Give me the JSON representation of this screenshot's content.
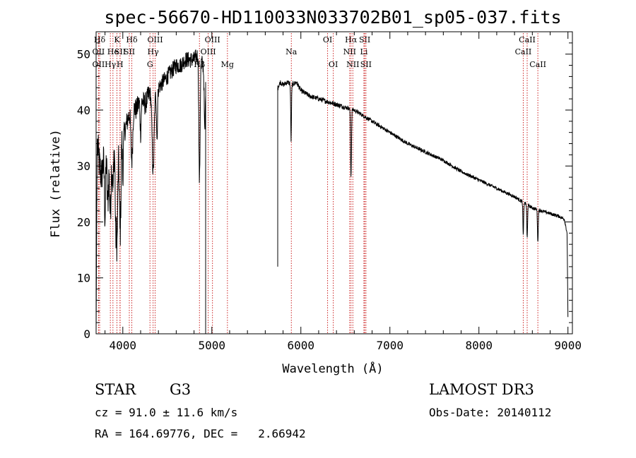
{
  "chart_data": {
    "type": "line",
    "title": "spec-56670-HD110033N033702B01_sp05-037.fits",
    "xlabel": "Wavelength (Å)",
    "ylabel": "Flux (relative)",
    "xlim": [
      3700,
      9050
    ],
    "ylim": [
      0,
      54
    ],
    "xticks": [
      4000,
      5000,
      6000,
      7000,
      8000,
      9000
    ],
    "yticks": [
      0,
      10,
      20,
      30,
      40,
      50
    ],
    "gap": [
      4930,
      5740
    ],
    "spectrum_anchors": [
      [
        3700,
        0
      ],
      [
        3712,
        35
      ],
      [
        3730,
        31
      ],
      [
        3760,
        28
      ],
      [
        3800,
        33
      ],
      [
        3850,
        30
      ],
      [
        3900,
        34
      ],
      [
        3940,
        31
      ],
      [
        3970,
        36
      ],
      [
        4000,
        35
      ],
      [
        4050,
        38
      ],
      [
        4100,
        41
      ],
      [
        4150,
        40
      ],
      [
        4200,
        42
      ],
      [
        4250,
        41
      ],
      [
        4300,
        43
      ],
      [
        4350,
        43
      ],
      [
        4400,
        44
      ],
      [
        4450,
        45
      ],
      [
        4500,
        46
      ],
      [
        4550,
        47
      ],
      [
        4600,
        48
      ],
      [
        4650,
        48
      ],
      [
        4700,
        49
      ],
      [
        4750,
        49
      ],
      [
        4800,
        49
      ],
      [
        4850,
        50
      ],
      [
        4900,
        48
      ],
      [
        4930,
        45
      ],
      [
        5740,
        44
      ],
      [
        5770,
        45
      ],
      [
        5800,
        44.5
      ],
      [
        5850,
        45
      ],
      [
        5900,
        44.5
      ],
      [
        5950,
        45
      ],
      [
        6000,
        43.5
      ],
      [
        6100,
        42.5
      ],
      [
        6200,
        42
      ],
      [
        6300,
        41.5
      ],
      [
        6400,
        41
      ],
      [
        6500,
        40.5
      ],
      [
        6600,
        40
      ],
      [
        6700,
        39
      ],
      [
        6800,
        38
      ],
      [
        6900,
        37
      ],
      [
        7000,
        36
      ],
      [
        7200,
        34
      ],
      [
        7400,
        32.5
      ],
      [
        7600,
        31
      ],
      [
        7800,
        29
      ],
      [
        8000,
        27.5
      ],
      [
        8200,
        26
      ],
      [
        8400,
        24.5
      ],
      [
        8500,
        23.5
      ],
      [
        8600,
        22.5
      ],
      [
        8700,
        22
      ],
      [
        8800,
        21.5
      ],
      [
        8900,
        21
      ],
      [
        8960,
        20.5
      ],
      [
        8990,
        18
      ],
      [
        9000,
        3
      ]
    ],
    "absorption_dips": [
      [
        3800,
        12,
        9
      ],
      [
        3830,
        8,
        10
      ],
      [
        3860,
        9,
        11
      ],
      [
        3890,
        7,
        10
      ],
      [
        3920,
        13,
        8
      ],
      [
        3935,
        15,
        10
      ],
      [
        3970,
        18,
        12
      ],
      [
        4000,
        8,
        6
      ],
      [
        4101,
        10,
        14
      ],
      [
        4200,
        6,
        8
      ],
      [
        4340,
        14,
        16
      ],
      [
        4384,
        9,
        8
      ],
      [
        4861,
        22,
        10
      ],
      [
        4920,
        10,
        8
      ],
      [
        5890,
        10,
        6
      ],
      [
        6563,
        12,
        7
      ],
      [
        8498,
        6,
        6
      ],
      [
        8542,
        6,
        6
      ],
      [
        8662,
        6,
        6
      ]
    ],
    "noise": [
      [
        3700,
        4000,
        7
      ],
      [
        4000,
        4300,
        4
      ],
      [
        4300,
        4900,
        3
      ],
      [
        4900,
        4930,
        3
      ],
      [
        5740,
        6500,
        0.9
      ],
      [
        6500,
        7500,
        0.7
      ],
      [
        7500,
        9000,
        0.6
      ]
    ],
    "spectral_lines": [
      {
        "label": "Hδ",
        "x": 3740,
        "row": 0
      },
      {
        "label": "OII",
        "x": 3727,
        "row": 1
      },
      {
        "label": "OII",
        "x": 3727,
        "row": 2
      },
      {
        "label": "He",
        "x": 3889,
        "row": 1
      },
      {
        "label": "Hγ",
        "x": 3860,
        "row": 2
      },
      {
        "label": "K",
        "x": 3934,
        "row": 0
      },
      {
        "label": "SII",
        "x": 3970,
        "row": 1
      },
      {
        "label": "H",
        "x": 3968,
        "row": 2
      },
      {
        "label": "Hδ",
        "x": 4101,
        "row": 0
      },
      {
        "label": "SII",
        "x": 4073,
        "row": 1
      },
      {
        "label": "OIII",
        "x": 4363,
        "row": 0
      },
      {
        "label": "Hγ",
        "x": 4340,
        "row": 1
      },
      {
        "label": "G",
        "x": 4305,
        "row": 2
      },
      {
        "label": "OIII",
        "x": 5007,
        "row": 0
      },
      {
        "label": "OIII",
        "x": 4959,
        "row": 1
      },
      {
        "label": "Hβ",
        "x": 4861,
        "row": 2
      },
      {
        "label": "Mg",
        "x": 5175,
        "row": 2
      },
      {
        "label": "Na",
        "x": 5893,
        "row": 1
      },
      {
        "label": "OI",
        "x": 6300,
        "row": 0
      },
      {
        "label": "OI",
        "x": 6364,
        "row": 2
      },
      {
        "label": "Hα",
        "x": 6563,
        "row": 0
      },
      {
        "label": "NII",
        "x": 6548,
        "row": 1
      },
      {
        "label": "NII",
        "x": 6584,
        "row": 2
      },
      {
        "label": "SII",
        "x": 6717,
        "row": 0
      },
      {
        "label": "Li",
        "x": 6708,
        "row": 1
      },
      {
        "label": "SII",
        "x": 6731,
        "row": 2
      },
      {
        "label": "CaII",
        "x": 8542,
        "row": 0
      },
      {
        "label": "CaII",
        "x": 8498,
        "row": 1
      },
      {
        "label": "CaII",
        "x": 8662,
        "row": 2
      }
    ]
  },
  "info": {
    "object_type": "STAR",
    "subclass": "G3",
    "survey": "LAMOST DR3",
    "cz": "cz = 91.0 ± 11.6 km/s",
    "obs_date": "Obs-Date: 20140112",
    "coords": "RA = 164.69776, DEC =   2.66942"
  },
  "colors": {
    "line_marker": "#cc2222",
    "spectrum": "#000000"
  }
}
